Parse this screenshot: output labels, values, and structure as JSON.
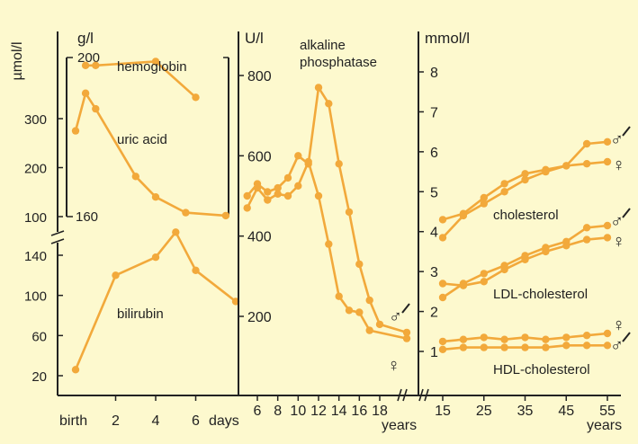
{
  "colors": {
    "background": "#fdf9ce",
    "series": "#f2a93b",
    "axis": "#222222"
  },
  "chart_data": [
    {
      "type": "line",
      "panel": "left",
      "x_ticks": [
        "birth",
        "2",
        "4",
        "6"
      ],
      "x_unit": "days",
      "axes": {
        "umol_l": {
          "label": "µmol/l",
          "ticks": [
            "100",
            "200",
            "300"
          ]
        },
        "g_l": {
          "label": "g/l",
          "ticks": [
            "200",
            "160"
          ]
        },
        "bilirubin_scale": {
          "ticks": [
            "20",
            "60",
            "100",
            "140"
          ]
        }
      },
      "series": [
        {
          "name": "hemoglobin",
          "points": [
            [
              0.5,
              198
            ],
            [
              1.0,
              198
            ],
            [
              4.0,
              199
            ],
            [
              6.0,
              190
            ]
          ]
        },
        {
          "name": "uric acid",
          "points": [
            [
              0.0,
              275
            ],
            [
              0.5,
              352
            ],
            [
              1.0,
              320
            ],
            [
              3.0,
              182
            ],
            [
              4.0,
              140
            ],
            [
              5.5,
              108
            ],
            [
              7.5,
              102
            ]
          ]
        },
        {
          "name": "bilirubin",
          "points": [
            [
              0.0,
              26
            ],
            [
              2.0,
              120
            ],
            [
              4.0,
              138
            ],
            [
              5.0,
              163
            ],
            [
              6.0,
              125
            ],
            [
              8.0,
              94
            ]
          ]
        }
      ]
    },
    {
      "type": "line",
      "panel": "middle",
      "title": "alkaline phosphatase",
      "ylabel": "U/l",
      "y_ticks": [
        "200",
        "400",
        "600",
        "800"
      ],
      "x_ticks": [
        "6",
        "8",
        "10",
        "12",
        "14",
        "16",
        "18"
      ],
      "x_unit": "years",
      "legend": [
        "♂",
        "♀"
      ],
      "series": [
        {
          "name": "♂",
          "points": [
            [
              5,
              500
            ],
            [
              6,
              530
            ],
            [
              7,
              510
            ],
            [
              8,
              520
            ],
            [
              9,
              545
            ],
            [
              10,
              600
            ],
            [
              11,
              580
            ],
            [
              12,
              770
            ],
            [
              13,
              730
            ],
            [
              14,
              580
            ],
            [
              15,
              460
            ],
            [
              16,
              330
            ],
            [
              17,
              240
            ],
            [
              18,
              180
            ],
            [
              20,
              160
            ]
          ]
        },
        {
          "name": "♀",
          "points": [
            [
              5,
              470
            ],
            [
              6,
              520
            ],
            [
              7,
              490
            ],
            [
              8,
              505
            ],
            [
              9,
              500
            ],
            [
              10,
              525
            ],
            [
              11,
              585
            ],
            [
              12,
              500
            ],
            [
              13,
              380
            ],
            [
              14,
              250
            ],
            [
              15,
              215
            ],
            [
              16,
              210
            ],
            [
              17,
              165
            ],
            [
              20,
              145
            ]
          ]
        }
      ]
    },
    {
      "type": "line",
      "panel": "right",
      "ylabel": "mmol/l",
      "y_ticks": [
        "1",
        "2",
        "3",
        "4",
        "5",
        "6",
        "7",
        "8"
      ],
      "x_ticks": [
        "15",
        "25",
        "35",
        "45",
        "55"
      ],
      "x_unit": "years",
      "legend": [
        "♂",
        "♀"
      ],
      "series": [
        {
          "name": "cholesterol ♂",
          "points": [
            [
              15,
              3.85
            ],
            [
              20,
              4.4
            ],
            [
              25,
              4.7
            ],
            [
              30,
              5.0
            ],
            [
              35,
              5.3
            ],
            [
              40,
              5.5
            ],
            [
              45,
              5.65
            ],
            [
              50,
              6.2
            ],
            [
              55,
              6.25
            ]
          ]
        },
        {
          "name": "cholesterol ♀",
          "points": [
            [
              15,
              4.3
            ],
            [
              20,
              4.45
            ],
            [
              25,
              4.85
            ],
            [
              30,
              5.2
            ],
            [
              35,
              5.45
            ],
            [
              40,
              5.55
            ],
            [
              45,
              5.65
            ],
            [
              50,
              5.7
            ],
            [
              55,
              5.75
            ]
          ]
        },
        {
          "name": "LDL-cholesterol ♂",
          "points": [
            [
              15,
              2.35
            ],
            [
              20,
              2.7
            ],
            [
              25,
              2.95
            ],
            [
              30,
              3.15
            ],
            [
              35,
              3.4
            ],
            [
              40,
              3.6
            ],
            [
              45,
              3.75
            ],
            [
              50,
              4.1
            ],
            [
              55,
              4.15
            ]
          ]
        },
        {
          "name": "LDL-cholesterol ♀",
          "points": [
            [
              15,
              2.7
            ],
            [
              20,
              2.65
            ],
            [
              25,
              2.75
            ],
            [
              30,
              3.05
            ],
            [
              35,
              3.3
            ],
            [
              40,
              3.5
            ],
            [
              45,
              3.65
            ],
            [
              50,
              3.8
            ],
            [
              55,
              3.85
            ]
          ]
        },
        {
          "name": "HDL-cholesterol ♀",
          "points": [
            [
              15,
              1.25
            ],
            [
              20,
              1.3
            ],
            [
              25,
              1.35
            ],
            [
              30,
              1.3
            ],
            [
              35,
              1.35
            ],
            [
              40,
              1.3
            ],
            [
              45,
              1.35
            ],
            [
              50,
              1.4
            ],
            [
              55,
              1.45
            ]
          ]
        },
        {
          "name": "HDL-cholesterol ♂",
          "points": [
            [
              15,
              1.05
            ],
            [
              20,
              1.1
            ],
            [
              25,
              1.1
            ],
            [
              30,
              1.1
            ],
            [
              35,
              1.1
            ],
            [
              40,
              1.1
            ],
            [
              45,
              1.15
            ],
            [
              50,
              1.15
            ],
            [
              55,
              1.15
            ]
          ]
        }
      ]
    }
  ],
  "labels": {
    "hemoglobin": "hemoglobin",
    "uric_acid": "uric acid",
    "bilirubin": "bilirubin",
    "alk_phos_line1": "alkaline",
    "alk_phos_line2": "phosphatase",
    "cholesterol": "cholesterol",
    "ldl": "LDL-cholesterol",
    "hdl": "HDL-cholesterol",
    "male": "♂",
    "female": "♀"
  }
}
